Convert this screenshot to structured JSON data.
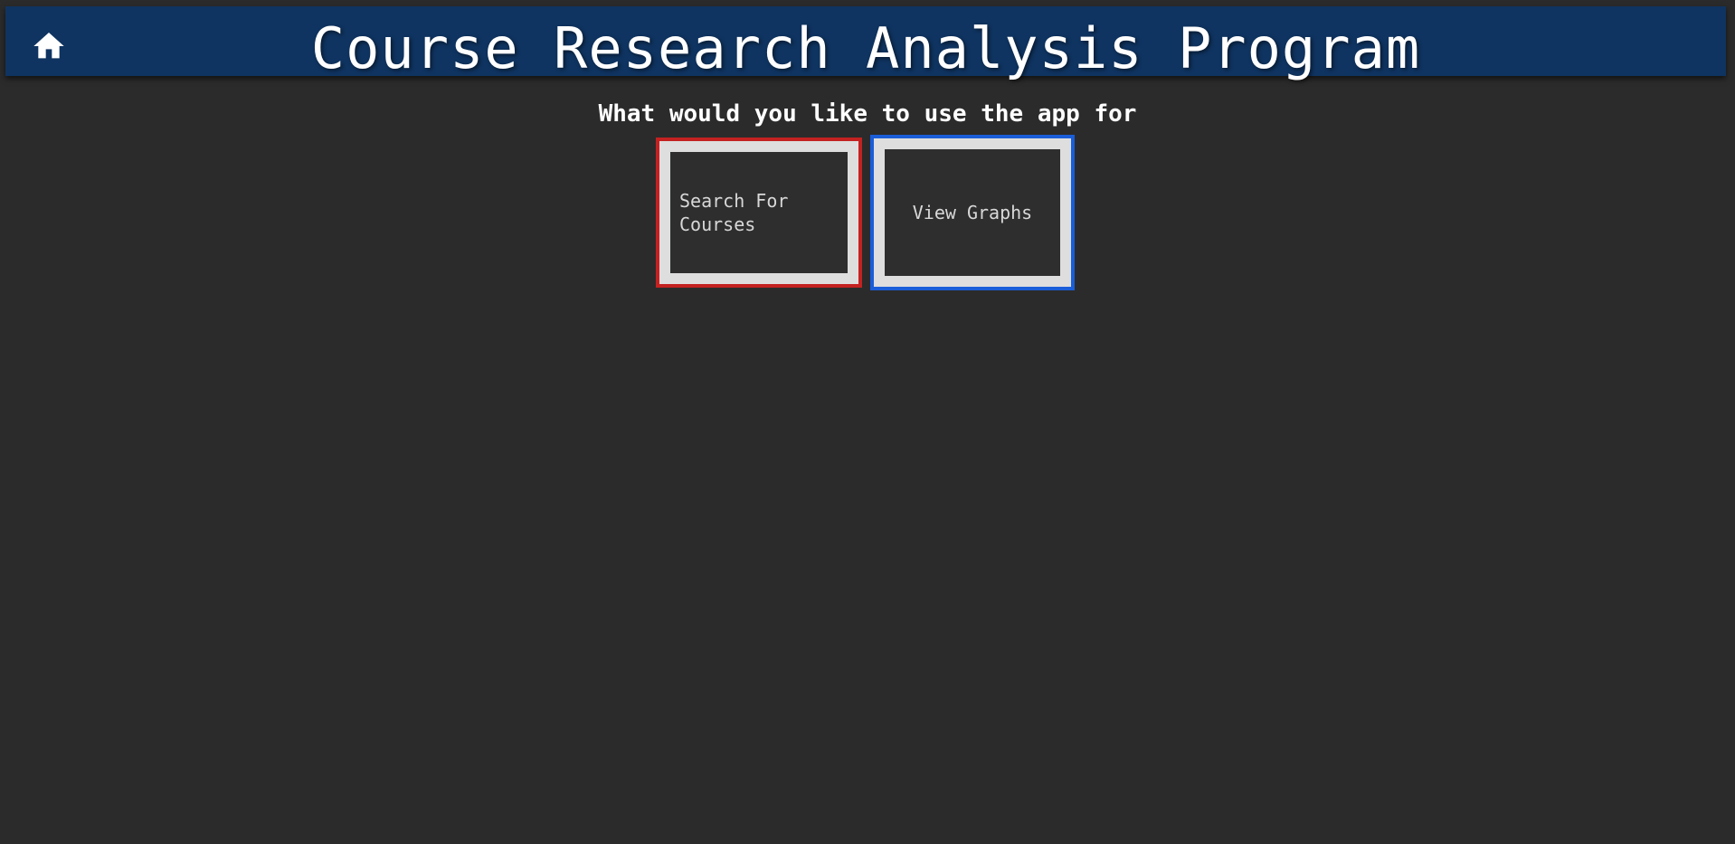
{
  "header": {
    "title": "Course Research Analysis Program",
    "home_icon": "home-icon",
    "background_color": "#0f3461"
  },
  "main": {
    "prompt": "What would you like to use the app for",
    "options": [
      {
        "label": "Search For Courses",
        "border_color": "#c42121"
      },
      {
        "label": "View Graphs",
        "border_color": "#1a5dd9"
      }
    ]
  },
  "colors": {
    "page_background": "#2b2b2b",
    "text": "#ffffff"
  }
}
